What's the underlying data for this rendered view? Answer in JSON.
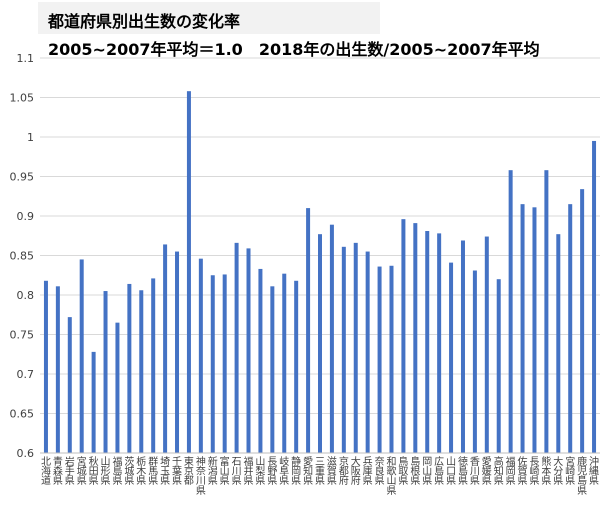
{
  "chart_data": {
    "type": "bar",
    "title": "都道府県別出生数の変化率",
    "subtitle": "2005~2007年平均＝1.0　2018年の出生数/2005~2007年平均",
    "xlabel": "",
    "ylabel": "",
    "ylim": [
      0.6,
      1.1
    ],
    "yticks": [
      "0.6",
      "0.65",
      "0.7",
      "0.75",
      "0.8",
      "0.85",
      "0.9",
      "0.95",
      "1",
      "1.05",
      "1.1"
    ],
    "grid": true,
    "legend": "none",
    "bar_color": "#4472c4",
    "categories": [
      "北海道",
      "青森県",
      "岩手県",
      "宮城県",
      "秋田県",
      "山形県",
      "福島県",
      "茨城県",
      "栃木県",
      "群馬県",
      "埼玉県",
      "千葉県",
      "東京都",
      "神奈川県",
      "新潟県",
      "富山県",
      "石川県",
      "福井県",
      "山梨県",
      "長野県",
      "岐阜県",
      "静岡県",
      "愛知県",
      "三重県",
      "滋賀県",
      "京都府",
      "大阪府",
      "兵庫県",
      "奈良県",
      "和歌山県",
      "鳥取県",
      "島根県",
      "岡山県",
      "広島県",
      "山口県",
      "徳島県",
      "香川県",
      "愛媛県",
      "高知県",
      "福岡県",
      "佐賀県",
      "長崎県",
      "熊本県",
      "大分県",
      "宮崎県",
      "鹿児島県",
      "沖縄県"
    ],
    "values": [
      0.818,
      0.811,
      0.772,
      0.845,
      0.728,
      0.805,
      0.765,
      0.814,
      0.806,
      0.821,
      0.864,
      0.855,
      1.058,
      0.846,
      0.825,
      0.826,
      0.866,
      0.859,
      0.833,
      0.811,
      0.827,
      0.818,
      0.91,
      0.877,
      0.889,
      0.861,
      0.866,
      0.855,
      0.836,
      0.837,
      0.896,
      0.891,
      0.881,
      0.878,
      0.841,
      0.869,
      0.831,
      0.874,
      0.82,
      0.958,
      0.915,
      0.911,
      0.958,
      0.877,
      0.915,
      0.934,
      0.995
    ]
  }
}
